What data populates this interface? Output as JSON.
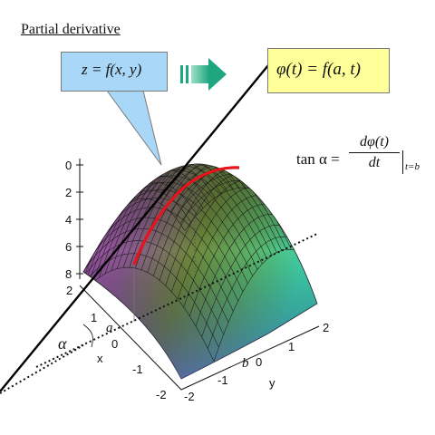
{
  "title": "Partial derivative",
  "callout_left": {
    "formula": "z = f(x, y)",
    "color": "#a9d7f8"
  },
  "callout_right": {
    "formula": "φ(t) = f(a, t)",
    "color": "#ffff99"
  },
  "arrow_color": "#2db08a",
  "tangent_formula": {
    "lhs": "tan α =",
    "numerator": "dφ(t)",
    "denominator": "dt",
    "eval_subscript": "t=b"
  },
  "z_axis_ticks": [
    "0",
    "2",
    "4",
    "6",
    "8"
  ],
  "x_axis": {
    "label": "x",
    "ticks": [
      "2",
      "1",
      "0",
      "-1",
      "-2"
    ]
  },
  "y_axis": {
    "label": "y",
    "ticks": [
      "-2",
      "-1",
      "0",
      "1",
      "2"
    ]
  },
  "symbols": {
    "alpha": "α",
    "a": "a",
    "b": "b"
  },
  "colors": {
    "curve": "#e8121a",
    "tangent_line": "#000000",
    "surface_top": "#5a7a3a",
    "surface_left": "#b24fc0",
    "surface_right": "#3fcfa5"
  }
}
